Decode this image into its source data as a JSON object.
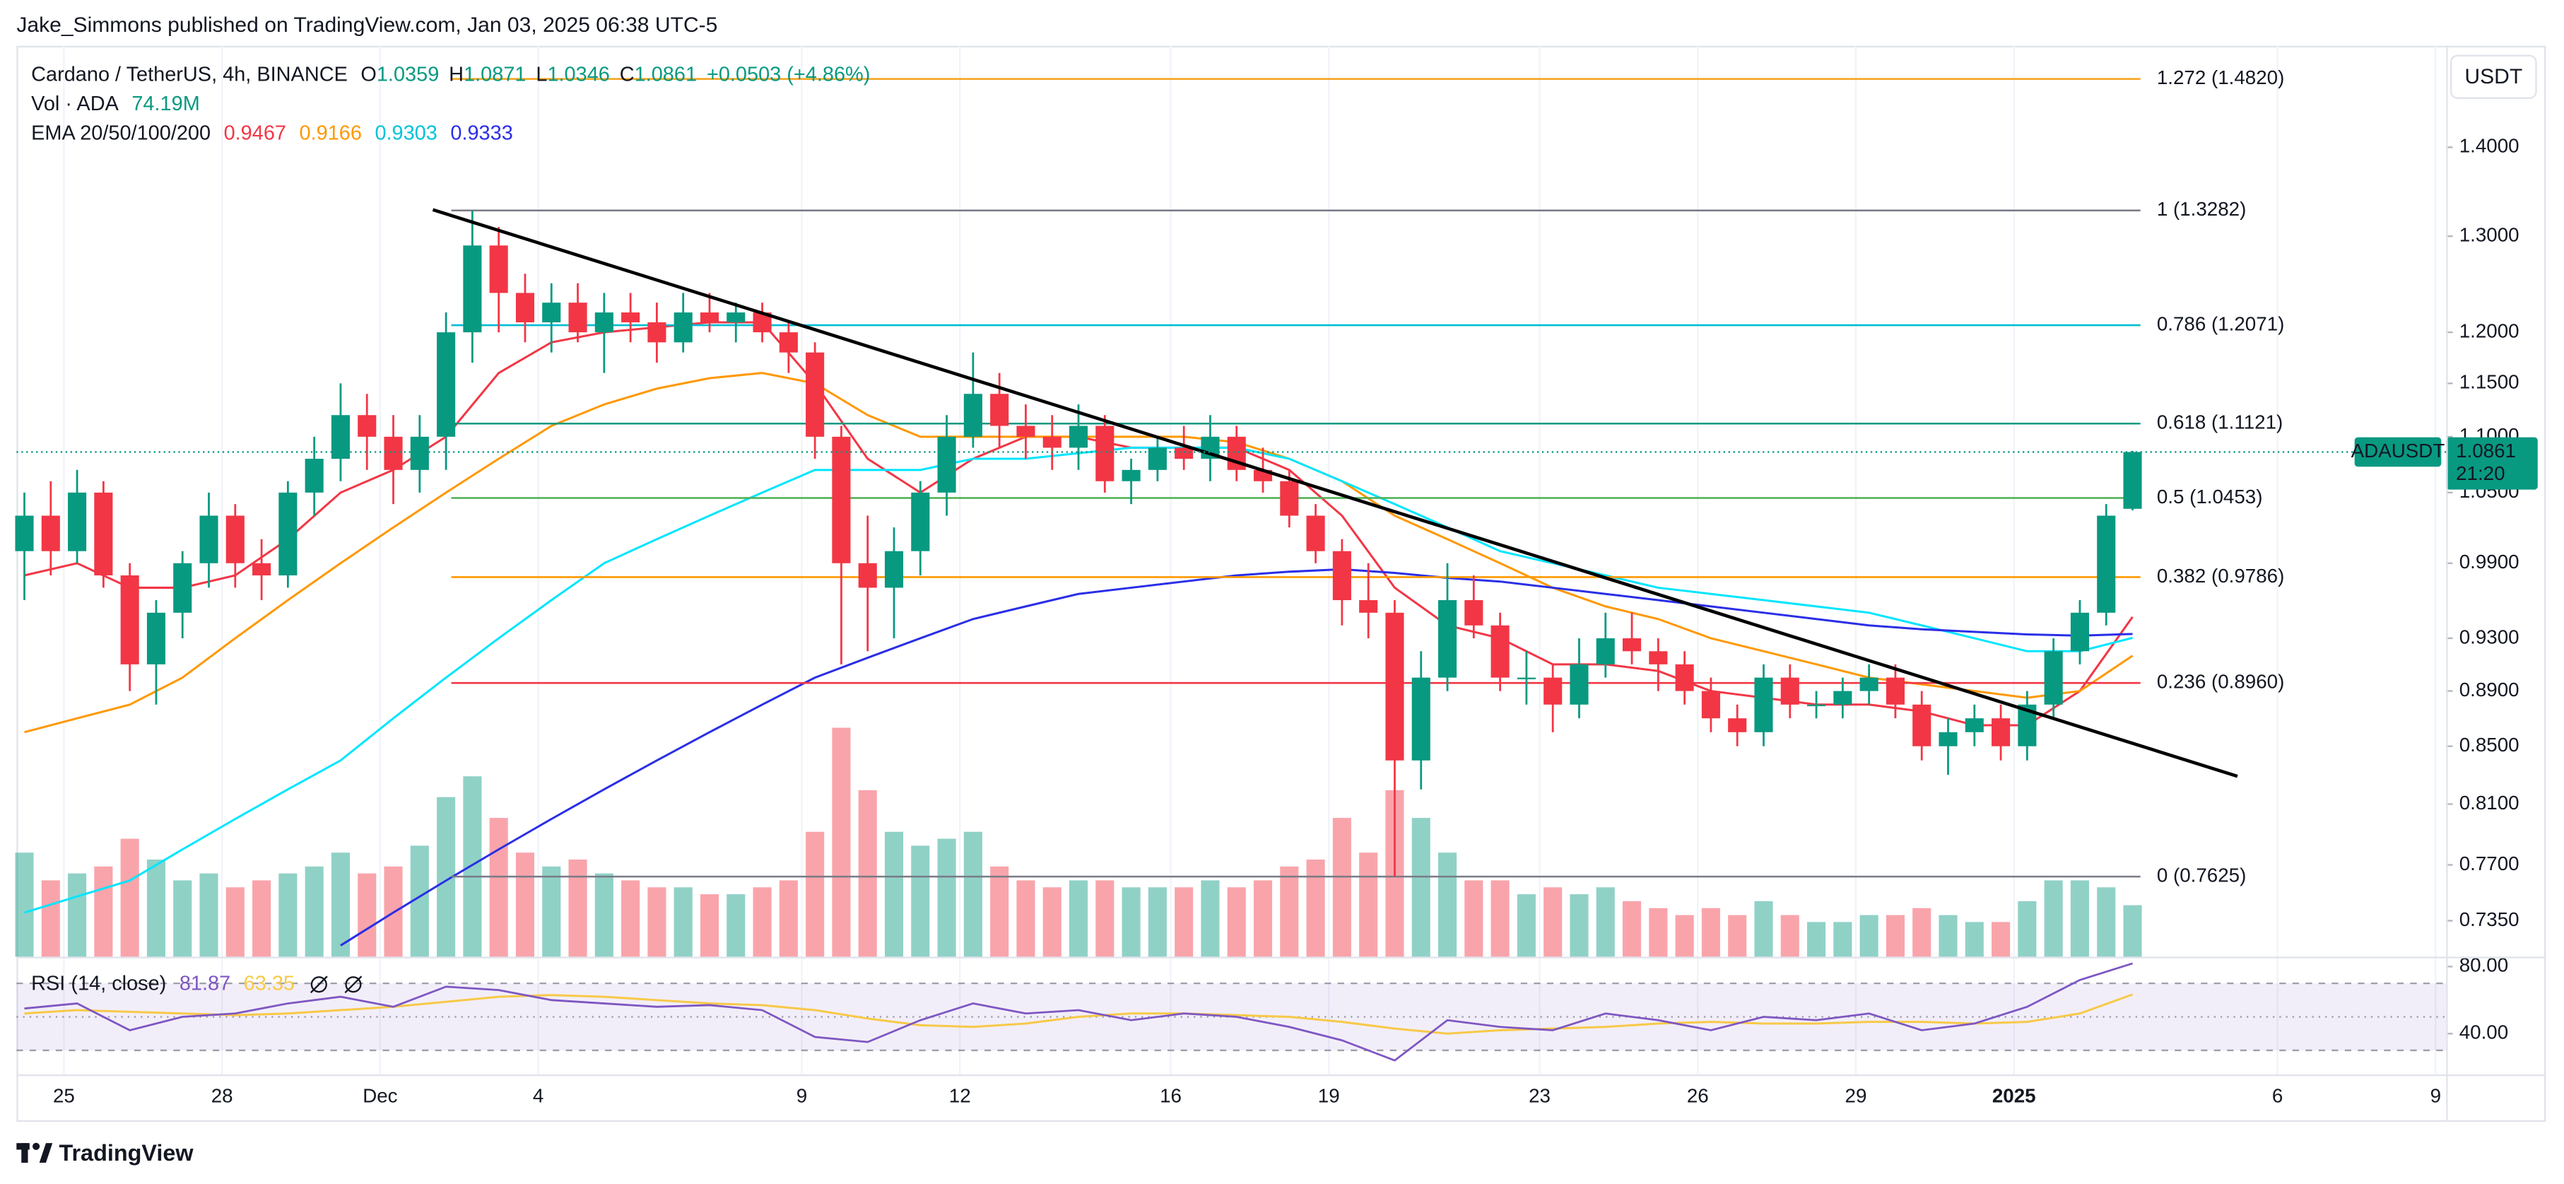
{
  "header": "Jake_Simmons published on TradingView.com, Jan 03, 2025 06:38 UTC-5",
  "footer": "TradingView",
  "chart_data": {
    "type": "candlestick",
    "symbol": "Cardano / TetherUS, 4h, BINANCE",
    "ohlc_letters": [
      "O",
      "H",
      "L",
      "C"
    ],
    "change": "+0.0503 (+4.86%)",
    "volume_title": "Vol · ADA",
    "volume_label": "74.19M",
    "currency": "USDT",
    "ticker": "ADAUSDT",
    "countdown": "21:20",
    "log_scale": true,
    "up_color": "#089981",
    "down_color": "#f23645",
    "xlim": [
      -0.9,
      45.2
    ],
    "ylim": [
      0.7133,
      1.5235
    ],
    "xticks": [
      {
        "value": 0,
        "label": "25"
      },
      {
        "value": 3,
        "label": "28"
      },
      {
        "value": 6,
        "label": "Dec"
      },
      {
        "value": 9,
        "label": "4"
      },
      {
        "value": 14,
        "label": "9"
      },
      {
        "value": 17,
        "label": "12"
      },
      {
        "value": 21,
        "label": "16"
      },
      {
        "value": 24,
        "label": "19"
      },
      {
        "value": 28,
        "label": "23"
      },
      {
        "value": 31,
        "label": "26"
      },
      {
        "value": 34,
        "label": "29"
      },
      {
        "value": 37,
        "label": "2025"
      },
      {
        "value": 42,
        "label": "6"
      },
      {
        "value": 45,
        "label": "9"
      }
    ],
    "yticks": [
      {
        "value": 1.4,
        "label": "1.4000"
      },
      {
        "value": 1.3,
        "label": "1.3000"
      },
      {
        "value": 1.2,
        "label": "1.2000"
      },
      {
        "value": 1.15,
        "label": "1.1500"
      },
      {
        "value": 1.1,
        "label": "1.1000"
      },
      {
        "value": 1.05,
        "label": "1.0500"
      },
      {
        "value": 0.99,
        "label": "0.9900"
      },
      {
        "value": 0.93,
        "label": "0.9300"
      },
      {
        "value": 0.89,
        "label": "0.8900"
      },
      {
        "value": 0.85,
        "label": "0.8500"
      },
      {
        "value": 0.81,
        "label": "0.8100"
      },
      {
        "value": 0.77,
        "label": "0.7700"
      },
      {
        "value": 0.735,
        "label": "0.7350"
      }
    ],
    "x": [
      -0.75,
      -0.25,
      0.25,
      0.75,
      1.25,
      1.75,
      2.25,
      2.75,
      3.25,
      3.75,
      4.25,
      4.75,
      5.25,
      5.75,
      6.25,
      6.75,
      7.25,
      7.75,
      8.25,
      8.75,
      9.25,
      9.75,
      10.25,
      10.75,
      11.25,
      11.75,
      12.25,
      12.75,
      13.25,
      13.75,
      14.25,
      14.75,
      15.25,
      15.75,
      16.25,
      16.75,
      17.25,
      17.75,
      18.25,
      18.75,
      19.25,
      19.75,
      20.25,
      20.75,
      21.25,
      21.75,
      22.25,
      22.75,
      23.25,
      23.75,
      24.25,
      24.75,
      25.25,
      25.75,
      26.25,
      26.75,
      27.25,
      27.75,
      28.25,
      28.75,
      29.25,
      29.75,
      30.25,
      30.75,
      31.25,
      31.75,
      32.25,
      32.75,
      33.25,
      33.75,
      34.25,
      34.75,
      35.25,
      35.75,
      36.25,
      36.75,
      37.25,
      37.75,
      38.25,
      38.75,
      39.25
    ],
    "open": [
      1.0,
      1.03,
      1.0,
      1.05,
      0.98,
      0.91,
      0.95,
      0.99,
      1.03,
      0.99,
      0.98,
      1.05,
      1.08,
      1.12,
      1.1,
      1.07,
      1.1,
      1.2,
      1.29,
      1.24,
      1.21,
      1.23,
      1.2,
      1.22,
      1.21,
      1.19,
      1.22,
      1.21,
      1.22,
      1.2,
      1.18,
      1.1,
      0.99,
      0.97,
      1.0,
      1.05,
      1.1,
      1.14,
      1.11,
      1.1,
      1.09,
      1.11,
      1.06,
      1.07,
      1.09,
      1.08,
      1.1,
      1.07,
      1.06,
      1.03,
      1.0,
      0.96,
      0.95,
      0.84,
      0.9,
      0.96,
      0.94,
      0.9,
      0.9,
      0.88,
      0.91,
      0.93,
      0.92,
      0.91,
      0.89,
      0.87,
      0.86,
      0.9,
      0.88,
      0.88,
      0.89,
      0.9,
      0.88,
      0.85,
      0.86,
      0.87,
      0.85,
      0.88,
      0.92,
      0.95,
      1.0359
    ],
    "high": [
      1.05,
      1.06,
      1.07,
      1.06,
      0.99,
      0.96,
      1.0,
      1.05,
      1.04,
      1.01,
      1.06,
      1.1,
      1.15,
      1.14,
      1.12,
      1.12,
      1.22,
      1.3282,
      1.31,
      1.26,
      1.25,
      1.25,
      1.24,
      1.24,
      1.23,
      1.24,
      1.24,
      1.23,
      1.23,
      1.21,
      1.19,
      1.11,
      1.03,
      1.02,
      1.06,
      1.12,
      1.18,
      1.16,
      1.13,
      1.12,
      1.13,
      1.12,
      1.08,
      1.1,
      1.11,
      1.12,
      1.11,
      1.09,
      1.07,
      1.04,
      1.01,
      0.99,
      0.96,
      0.92,
      0.99,
      0.98,
      0.95,
      0.92,
      0.91,
      0.93,
      0.95,
      0.95,
      0.93,
      0.92,
      0.9,
      0.88,
      0.91,
      0.91,
      0.89,
      0.9,
      0.91,
      0.91,
      0.89,
      0.87,
      0.88,
      0.88,
      0.89,
      0.93,
      0.96,
      1.04,
      1.0871
    ],
    "low": [
      0.96,
      0.98,
      0.99,
      0.97,
      0.89,
      0.88,
      0.93,
      0.97,
      0.97,
      0.96,
      0.97,
      1.03,
      1.06,
      1.07,
      1.04,
      1.05,
      1.07,
      1.17,
      1.2,
      1.19,
      1.18,
      1.19,
      1.16,
      1.19,
      1.17,
      1.18,
      1.2,
      1.19,
      1.19,
      1.16,
      1.08,
      0.91,
      0.92,
      0.93,
      0.98,
      1.03,
      1.09,
      1.09,
      1.08,
      1.07,
      1.07,
      1.05,
      1.04,
      1.06,
      1.07,
      1.06,
      1.06,
      1.05,
      1.02,
      0.99,
      0.94,
      0.93,
      0.7625,
      0.82,
      0.89,
      0.93,
      0.89,
      0.88,
      0.86,
      0.87,
      0.9,
      0.91,
      0.89,
      0.88,
      0.86,
      0.85,
      0.85,
      0.87,
      0.87,
      0.87,
      0.88,
      0.87,
      0.84,
      0.83,
      0.85,
      0.84,
      0.84,
      0.87,
      0.91,
      0.94,
      1.0346
    ],
    "close": [
      1.03,
      1.0,
      1.05,
      0.98,
      0.91,
      0.95,
      0.99,
      1.03,
      0.99,
      0.98,
      1.05,
      1.08,
      1.12,
      1.1,
      1.07,
      1.1,
      1.2,
      1.29,
      1.24,
      1.21,
      1.23,
      1.2,
      1.22,
      1.21,
      1.19,
      1.22,
      1.21,
      1.22,
      1.2,
      1.18,
      1.1,
      0.99,
      0.97,
      1.0,
      1.05,
      1.1,
      1.14,
      1.11,
      1.1,
      1.09,
      1.11,
      1.06,
      1.07,
      1.09,
      1.08,
      1.1,
      1.07,
      1.06,
      1.03,
      1.0,
      0.96,
      0.95,
      0.84,
      0.9,
      0.96,
      0.94,
      0.9,
      0.9,
      0.88,
      0.91,
      0.93,
      0.92,
      0.91,
      0.89,
      0.87,
      0.86,
      0.9,
      0.88,
      0.88,
      0.89,
      0.9,
      0.88,
      0.85,
      0.86,
      0.87,
      0.85,
      0.88,
      0.92,
      0.95,
      1.03,
      1.0861
    ],
    "volume": [
      150,
      110,
      120,
      130,
      170,
      140,
      110,
      120,
      100,
      110,
      120,
      130,
      150,
      120,
      130,
      160,
      230,
      260,
      200,
      150,
      130,
      140,
      120,
      110,
      100,
      100,
      90,
      90,
      100,
      110,
      180,
      330,
      240,
      180,
      160,
      170,
      180,
      130,
      110,
      100,
      110,
      110,
      100,
      100,
      100,
      110,
      100,
      110,
      130,
      140,
      200,
      150,
      240,
      200,
      150,
      110,
      110,
      90,
      100,
      90,
      100,
      80,
      70,
      60,
      70,
      60,
      80,
      60,
      50,
      50,
      60,
      60,
      70,
      60,
      50,
      50,
      80,
      110,
      110,
      100,
      74.19
    ],
    "ema": {
      "label": "EMA 20/50/100/200",
      "x": [
        -0.75,
        0.25,
        1.25,
        2.25,
        3.25,
        4.25,
        5.25,
        6.25,
        7.25,
        8.25,
        9.25,
        10.25,
        11.25,
        12.25,
        13.25,
        14.25,
        15.25,
        16.25,
        17.25,
        18.25,
        19.25,
        20.25,
        21.25,
        22.25,
        23.25,
        24.25,
        25.25,
        26.25,
        27.25,
        28.25,
        29.25,
        30.25,
        31.25,
        32.25,
        33.25,
        34.25,
        35.25,
        36.25,
        37.25,
        38.25,
        39.25
      ],
      "series": [
        {
          "color": "#f23645",
          "values": [
            0.98,
            0.99,
            0.97,
            0.97,
            0.98,
            1.01,
            1.05,
            1.07,
            1.1,
            1.16,
            1.19,
            1.2,
            1.205,
            1.21,
            1.21,
            1.15,
            1.08,
            1.05,
            1.08,
            1.1,
            1.1,
            1.09,
            1.09,
            1.09,
            1.07,
            1.03,
            0.97,
            0.94,
            0.93,
            0.91,
            0.91,
            0.905,
            0.89,
            0.885,
            0.88,
            0.88,
            0.875,
            0.865,
            0.865,
            0.89,
            0.9467
          ]
        },
        {
          "color": "#ff9800",
          "values": [
            0.86,
            0.87,
            0.88,
            0.9,
            0.93,
            0.96,
            0.99,
            1.02,
            1.05,
            1.08,
            1.11,
            1.13,
            1.145,
            1.155,
            1.16,
            1.15,
            1.12,
            1.1,
            1.1,
            1.1,
            1.1,
            1.1,
            1.1,
            1.095,
            1.08,
            1.06,
            1.03,
            1.01,
            0.99,
            0.97,
            0.955,
            0.945,
            0.93,
            0.92,
            0.91,
            0.9,
            0.895,
            0.89,
            0.885,
            0.89,
            0.9166
          ]
        },
        {
          "color": "#00e5ff",
          "values": [
            0.74,
            0.75,
            0.76,
            0.78,
            0.8,
            0.82,
            0.84,
            0.87,
            0.9,
            0.93,
            0.96,
            0.99,
            1.01,
            1.03,
            1.05,
            1.07,
            1.07,
            1.07,
            1.08,
            1.08,
            1.085,
            1.09,
            1.09,
            1.09,
            1.08,
            1.06,
            1.04,
            1.02,
            1.0,
            0.99,
            0.98,
            0.97,
            0.965,
            0.96,
            0.955,
            0.95,
            0.94,
            0.93,
            0.92,
            0.92,
            0.9303
          ]
        },
        {
          "color": "#2a2ee6",
          "values": [
            null,
            null,
            null,
            null,
            null,
            null,
            0.72,
            0.74,
            0.76,
            0.78,
            0.8,
            0.82,
            0.84,
            0.86,
            0.88,
            0.9,
            0.915,
            0.93,
            0.945,
            0.955,
            0.965,
            0.97,
            0.975,
            0.98,
            0.983,
            0.985,
            0.982,
            0.978,
            0.975,
            0.97,
            0.965,
            0.96,
            0.955,
            0.95,
            0.945,
            0.94,
            0.937,
            0.935,
            0.933,
            0.932,
            0.9333
          ]
        }
      ]
    },
    "fib_x": [
      7.35,
      39.4
    ],
    "fib": [
      {
        "label": "1.272 (1.4820)",
        "value": 1.482,
        "color": "#f5a623"
      },
      {
        "label": "1 (1.3282)",
        "value": 1.3282,
        "color": "#787b86"
      },
      {
        "label": "0.786 (1.2071)",
        "value": 1.2071,
        "color": "#00bcd4"
      },
      {
        "label": "0.618 (1.1121)",
        "value": 1.1121,
        "color": "#089981"
      },
      {
        "label": "0.5 (1.0453)",
        "value": 1.0453,
        "color": "#4caf50"
      },
      {
        "label": "0.382 (0.9786)",
        "value": 0.9786,
        "color": "#ff9800"
      },
      {
        "label": "0.236 (0.8960)",
        "value": 0.896,
        "color": "#f23645"
      },
      {
        "label": "0 (0.7625)",
        "value": 0.7625,
        "color": "#787b86"
      }
    ],
    "trendline": {
      "x": [
        7.0,
        41.24
      ],
      "values": [
        1.329,
        0.829
      ],
      "color": "#000000"
    },
    "rsi": {
      "label": "RSI (14, close)",
      "ylim": [
        17.6,
        85.9
      ],
      "yticks": [
        {
          "value": 80,
          "label": "80.00"
        },
        {
          "value": 40,
          "label": "40.00"
        }
      ],
      "bands": [
        70,
        50,
        30
      ],
      "color": "#7e57c2",
      "ma_color": "#f7c948",
      "x": [
        -0.75,
        0.25,
        1.25,
        2.25,
        3.25,
        4.25,
        5.25,
        6.25,
        7.25,
        8.25,
        9.25,
        10.25,
        11.25,
        12.25,
        13.25,
        14.25,
        15.25,
        16.25,
        17.25,
        18.25,
        19.25,
        20.25,
        21.25,
        22.25,
        23.25,
        24.25,
        25.25,
        26.25,
        27.25,
        28.25,
        29.25,
        30.25,
        31.25,
        32.25,
        33.25,
        34.25,
        35.25,
        36.25,
        37.25,
        38.25,
        39.25
      ],
      "values": [
        55,
        58,
        42,
        50,
        52,
        58,
        62,
        56,
        68,
        66,
        60,
        58,
        56,
        57,
        54,
        38,
        35,
        48,
        58,
        52,
        54,
        48,
        52,
        50,
        44,
        36,
        24,
        48,
        44,
        42,
        52,
        48,
        42,
        50,
        48,
        52,
        42,
        46,
        56,
        72,
        81.87
      ],
      "ma": [
        52,
        54,
        53,
        52,
        51,
        52,
        54,
        56,
        59,
        62,
        63,
        62,
        60,
        58,
        57,
        54,
        49,
        45,
        44,
        46,
        50,
        52,
        52,
        51,
        50,
        47,
        43,
        40,
        42,
        43,
        44,
        46,
        47,
        46,
        46,
        47,
        47,
        46,
        47,
        52,
        63.35
      ]
    }
  }
}
